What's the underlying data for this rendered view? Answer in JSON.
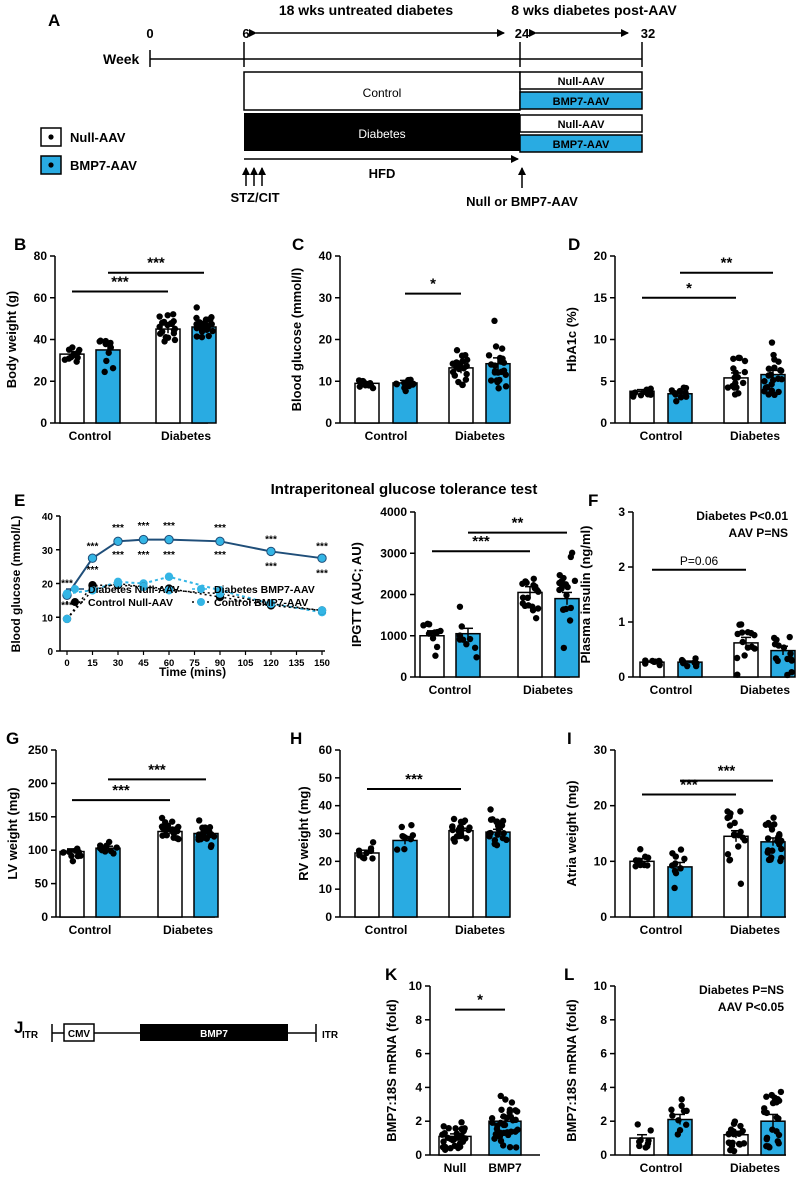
{
  "colors": {
    "null_fill": "#ffffff",
    "bmp7_fill": "#29abe2",
    "line_dark": "#1f4e79",
    "line_light": "#33b5e5",
    "dot": "#000000",
    "timeline_bg": "#000000"
  },
  "panelA": {
    "letter": "A",
    "week_label": "Week",
    "weeks": [
      "0",
      "6",
      "24",
      "32"
    ],
    "period1": "18 wks untreated diabetes",
    "period2": "8 wks diabetes post-AAV",
    "control_bar": "Control",
    "diabetes_bar": "Diabetes",
    "hfd": "HFD",
    "stz": "STZ/CIT",
    "injection": "Null or BMP7-AAV",
    "legend_null": "Null-AAV",
    "legend_bmp7": "BMP7-AAV",
    "box_null": "Null-AAV",
    "box_bmp7": "BMP7-AAV"
  },
  "panelJ": {
    "letter": "J",
    "itr": "ITR",
    "cmv": "CMV",
    "bmp7": "BMP7"
  },
  "panelE_title": "Intraperitoneal glucose tolerance test",
  "line_ipgtt": {
    "letter": "E",
    "ylabel": "Blood glucose (mmol/L)",
    "xlabel": "Time (mins)",
    "ylim": [
      0,
      40
    ],
    "yticks": [
      "0",
      "10",
      "20",
      "30",
      "40"
    ],
    "xticks": [
      "0",
      "15",
      "30",
      "45",
      "60",
      "75",
      "90",
      "105",
      "120",
      "135",
      "150"
    ],
    "x": [
      0,
      15,
      30,
      45,
      60,
      90,
      120,
      150
    ],
    "series": [
      {
        "name": "Diabetes Null-AAV",
        "values": [
          16.5,
          27.5,
          32.5,
          33,
          33,
          32.5,
          29.5,
          27.5
        ]
      },
      {
        "name": "Diabetes BMP7-AAV",
        "values": [
          17,
          18,
          20.5,
          20,
          22,
          18,
          14,
          11.5
        ]
      },
      {
        "name": "Control Null-AAV",
        "values": [
          9.5,
          19.5,
          19.5,
          19,
          18.5,
          16,
          13.5,
          12
        ]
      },
      {
        "name": "Control BMP7-AAV",
        "values": [
          9.5,
          18,
          20,
          19,
          18,
          17,
          14,
          12
        ]
      }
    ],
    "stars": [
      "***",
      "***",
      "***",
      "***",
      "***",
      "***",
      "***",
      "***",
      "***",
      "***",
      "***",
      "***",
      "***",
      "***",
      "***",
      "***"
    ],
    "legend": [
      "Diabetes Null-AAV",
      "Control Null-AAV",
      "Diabetes BMP7-AAV",
      "Control BMP7-AAV"
    ]
  },
  "chart_data": [
    {
      "letter": "B",
      "type": "bar",
      "ylabel": "Body weight (g)",
      "categories": [
        "Control",
        "Diabetes"
      ],
      "ylim": [
        0,
        80
      ],
      "yticks": [
        "0",
        "20",
        "40",
        "60",
        "80"
      ],
      "series": [
        {
          "name": "Null-AAV",
          "values": [
            33,
            45
          ]
        },
        {
          "name": "BMP7-AAV",
          "values": [
            35,
            46
          ]
        }
      ],
      "sig": [
        {
          "text": "***",
          "from": "Control Null-AAV",
          "to": "Diabetes Null-AAV",
          "y": 63
        },
        {
          "text": "***",
          "from": "Control BMP7-AAV",
          "to": "Diabetes BMP7-AAV",
          "y": 72
        }
      ]
    },
    {
      "letter": "C",
      "type": "bar",
      "ylabel": "Blood glucose (mmol/l)",
      "categories": [
        "Control",
        "Diabetes"
      ],
      "ylim": [
        0,
        40
      ],
      "yticks": [
        "0",
        "10",
        "20",
        "30",
        "40"
      ],
      "series": [
        {
          "name": "Null-AAV",
          "values": [
            9.5,
            13.2
          ]
        },
        {
          "name": "BMP7-AAV",
          "values": [
            9.6,
            14.2
          ]
        }
      ],
      "sig": [
        {
          "text": "*",
          "from": "Control BMP7-AAV",
          "to": "Diabetes Null-AAV",
          "y": 31
        }
      ]
    },
    {
      "letter": "D",
      "type": "bar",
      "ylabel": "HbA1c (%)",
      "categories": [
        "Control",
        "Diabetes"
      ],
      "ylim": [
        0,
        20
      ],
      "yticks": [
        "0",
        "5",
        "10",
        "15",
        "20"
      ],
      "series": [
        {
          "name": "Null-AAV",
          "values": [
            3.8,
            5.4
          ]
        },
        {
          "name": "BMP7-AAV",
          "values": [
            3.5,
            5.8
          ]
        }
      ],
      "sig": [
        {
          "text": "*",
          "from": "Control Null-AAV",
          "to": "Diabetes Null-AAV",
          "y": 15
        },
        {
          "text": "**",
          "from": "Control BMP7-AAV",
          "to": "Diabetes BMP7-AAV",
          "y": 18
        }
      ]
    },
    {
      "letter": "",
      "type": "bar",
      "ylabel": "IPGTT (AUC; AU)",
      "categories": [
        "Control",
        "Diabetes"
      ],
      "ylim": [
        0,
        4000
      ],
      "yticks": [
        "0",
        "1000",
        "2000",
        "3000",
        "4000"
      ],
      "series": [
        {
          "name": "Null-AAV",
          "values": [
            1000,
            2050
          ]
        },
        {
          "name": "BMP7-AAV",
          "values": [
            1050,
            1900
          ]
        }
      ],
      "sig": [
        {
          "text": "***",
          "from": "Control Null-AAV",
          "to": "Diabetes Null-AAV",
          "y": 3050
        },
        {
          "text": "**",
          "from": "Control BMP7-AAV",
          "to": "Diabetes BMP7-AAV",
          "y": 3500
        }
      ]
    },
    {
      "letter": "F",
      "type": "bar",
      "ylabel": "Plasma insulin (ng/ml)",
      "categories": [
        "Control",
        "Diabetes"
      ],
      "ylim": [
        0,
        3
      ],
      "yticks": [
        "0",
        "1",
        "2",
        "3"
      ],
      "series": [
        {
          "name": "Null-AAV",
          "values": [
            0.27,
            0.62
          ]
        },
        {
          "name": "BMP7-AAV",
          "values": [
            0.27,
            0.48
          ]
        }
      ],
      "sig": [
        {
          "text": "P=0.06",
          "from": "Control Null-AAV",
          "to": "Diabetes Null-AAV",
          "y": 1.95
        }
      ],
      "annotations": [
        "Diabetes P<0.01",
        "AAV P=NS"
      ]
    },
    {
      "letter": "G",
      "type": "bar",
      "ylabel": "LV weight (mg)",
      "categories": [
        "Control",
        "Diabetes"
      ],
      "ylim": [
        0,
        250
      ],
      "yticks": [
        "0",
        "50",
        "100",
        "150",
        "200",
        "250"
      ],
      "series": [
        {
          "name": "Null-AAV",
          "values": [
            98,
            128
          ]
        },
        {
          "name": "BMP7-AAV",
          "values": [
            103,
            125
          ]
        }
      ],
      "sig": [
        {
          "text": "***",
          "from": "Control Null-AAV",
          "to": "Diabetes Null-AAV",
          "y": 175
        },
        {
          "text": "***",
          "from": "Control BMP7-AAV",
          "to": "Diabetes BMP7-AAV",
          "y": 206
        }
      ]
    },
    {
      "letter": "H",
      "type": "bar",
      "ylabel": "RV weight (mg)",
      "categories": [
        "Control",
        "Diabetes"
      ],
      "ylim": [
        0,
        60
      ],
      "yticks": [
        "0",
        "10",
        "20",
        "30",
        "40",
        "50",
        "60"
      ],
      "series": [
        {
          "name": "Null-AAV",
          "values": [
            23,
            31
          ]
        },
        {
          "name": "BMP7-AAV",
          "values": [
            27.5,
            30.5
          ]
        }
      ],
      "sig": [
        {
          "text": "***",
          "from": "Control Null-AAV",
          "to": "Diabetes Null-AAV",
          "y": 46
        }
      ]
    },
    {
      "letter": "I",
      "type": "bar",
      "ylabel": "Atria weight (mg)",
      "categories": [
        "Control",
        "Diabetes"
      ],
      "ylim": [
        0,
        30
      ],
      "yticks": [
        "0",
        "10",
        "20",
        "30"
      ],
      "series": [
        {
          "name": "Null-AAV",
          "values": [
            10,
            14.5
          ]
        },
        {
          "name": "BMP7-AAV",
          "values": [
            9,
            13.5
          ]
        }
      ],
      "sig": [
        {
          "text": "***",
          "from": "Control Null-AAV",
          "to": "Diabetes Null-AAV",
          "y": 22
        },
        {
          "text": "***",
          "from": "Control BMP7-AAV",
          "to": "Diabetes BMP7-AAV",
          "y": 24.5
        }
      ]
    },
    {
      "letter": "K",
      "type": "bar",
      "ylabel": "BMP7:18S mRNA (fold)",
      "categories": [
        "Null",
        "BMP7"
      ],
      "ylim": [
        0,
        10
      ],
      "yticks": [
        "0",
        "2",
        "4",
        "6",
        "8",
        "10"
      ],
      "series": [
        {
          "name": "value",
          "values": [
            1.1,
            2.0
          ]
        }
      ],
      "sig": [
        {
          "text": "*",
          "from": "Null",
          "to": "BMP7",
          "y": 8.6
        }
      ]
    },
    {
      "letter": "L",
      "type": "bar",
      "ylabel": "BMP7:18S mRNA (fold)",
      "categories": [
        "Control",
        "Diabetes"
      ],
      "ylim": [
        0,
        10
      ],
      "yticks": [
        "0",
        "2",
        "4",
        "6",
        "8",
        "10"
      ],
      "series": [
        {
          "name": "Null-AAV",
          "values": [
            1.0,
            1.2
          ]
        },
        {
          "name": "BMP7-AAV",
          "values": [
            2.1,
            2.0
          ]
        }
      ],
      "sig": [],
      "annotations": [
        "Diabetes P=NS",
        "AAV P<0.05"
      ]
    }
  ]
}
